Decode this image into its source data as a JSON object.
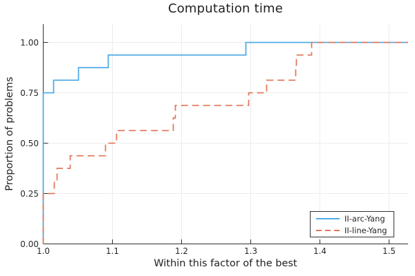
{
  "chart_data": {
    "type": "line",
    "subtype": "step-performance-profile",
    "title": "Computation time",
    "xlabel": "Within this factor of the best",
    "ylabel": "Proportion of problems",
    "xlim": [
      1.0,
      1.5275
    ],
    "ylim": [
      0.0,
      1.09
    ],
    "grid": true,
    "legend_position": "bottom-right",
    "x_ticks": [
      1.0,
      1.1,
      1.2,
      1.3,
      1.4,
      1.5
    ],
    "x_tick_labels": [
      "1.0",
      "1.1",
      "1.2",
      "1.3",
      "1.4",
      "1.5"
    ],
    "y_ticks": [
      0.0,
      0.25,
      0.5,
      0.75,
      1.0
    ],
    "y_tick_labels": [
      "0.00",
      "0.25",
      "0.50",
      "0.75",
      "1.00"
    ],
    "series": [
      {
        "name": "II-arc-Yang",
        "color": "#4FACE6",
        "style": "solid",
        "start": [
          1.0,
          0.0
        ],
        "steps": [
          [
            1.0,
            0.75
          ],
          [
            1.015,
            0.8125
          ],
          [
            1.051,
            0.875
          ],
          [
            1.094,
            0.9375
          ],
          [
            1.293,
            1.0
          ]
        ],
        "end_x": 1.5275
      },
      {
        "name": "II-line-Yang",
        "color": "#E4795C",
        "style": "dashed",
        "start": [
          1.0,
          0.0
        ],
        "steps": [
          [
            1.0,
            0.25
          ],
          [
            1.016,
            0.3125
          ],
          [
            1.02,
            0.375
          ],
          [
            1.039,
            0.4375
          ],
          [
            1.09,
            0.5
          ],
          [
            1.106,
            0.5625
          ],
          [
            1.188,
            0.625
          ],
          [
            1.191,
            0.6875
          ],
          [
            1.297,
            0.75
          ],
          [
            1.323,
            0.8125
          ],
          [
            1.365,
            0.875
          ],
          [
            1.366,
            0.9375
          ],
          [
            1.388,
            1.0
          ]
        ],
        "end_x": 1.5275
      }
    ]
  },
  "colors": {
    "background": "#FFFFFF",
    "grid": "#ECECEC",
    "axis": "#2E2E2E",
    "title_text": "#1F1F1F",
    "tick_text": "#262626"
  }
}
